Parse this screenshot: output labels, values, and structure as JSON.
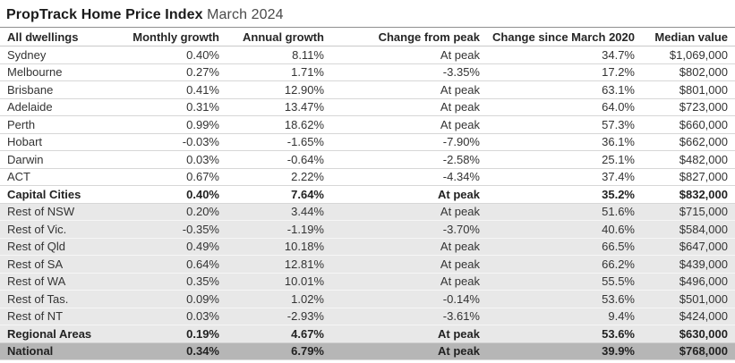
{
  "title": {
    "bold": "PropTrack Home Price Index",
    "regular": "March 2024"
  },
  "chart_data": {
    "type": "table",
    "title": "PropTrack Home Price Index March 2024",
    "columns": [
      "All dwellings",
      "Monthly growth",
      "Annual growth",
      "Change from peak",
      "Change since March 2020",
      "Median value"
    ],
    "rows": [
      {
        "group": "capital",
        "cells": [
          "Sydney",
          "0.40%",
          "8.11%",
          "At peak",
          "34.7%",
          "$1,069,000"
        ]
      },
      {
        "group": "capital",
        "cells": [
          "Melbourne",
          "0.27%",
          "1.71%",
          "-3.35%",
          "17.2%",
          "$802,000"
        ]
      },
      {
        "group": "capital",
        "cells": [
          "Brisbane",
          "0.41%",
          "12.90%",
          "At peak",
          "63.1%",
          "$801,000"
        ]
      },
      {
        "group": "capital",
        "cells": [
          "Adelaide",
          "0.31%",
          "13.47%",
          "At peak",
          "64.0%",
          "$723,000"
        ]
      },
      {
        "group": "capital",
        "cells": [
          "Perth",
          "0.99%",
          "18.62%",
          "At peak",
          "57.3%",
          "$660,000"
        ]
      },
      {
        "group": "capital",
        "cells": [
          "Hobart",
          "-0.03%",
          "-1.65%",
          "-7.90%",
          "36.1%",
          "$662,000"
        ]
      },
      {
        "group": "capital",
        "cells": [
          "Darwin",
          "0.03%",
          "-0.64%",
          "-2.58%",
          "25.1%",
          "$482,000"
        ]
      },
      {
        "group": "capital",
        "cells": [
          "ACT",
          "0.67%",
          "2.22%",
          "-4.34%",
          "37.4%",
          "$827,000"
        ]
      },
      {
        "group": "capital-total",
        "cells": [
          "Capital Cities",
          "0.40%",
          "7.64%",
          "At peak",
          "35.2%",
          "$832,000"
        ]
      },
      {
        "group": "regional",
        "cells": [
          "Rest of NSW",
          "0.20%",
          "3.44%",
          "At peak",
          "51.6%",
          "$715,000"
        ]
      },
      {
        "group": "regional",
        "cells": [
          "Rest of Vic.",
          "-0.35%",
          "-1.19%",
          "-3.70%",
          "40.6%",
          "$584,000"
        ]
      },
      {
        "group": "regional",
        "cells": [
          "Rest of Qld",
          "0.49%",
          "10.18%",
          "At peak",
          "66.5%",
          "$647,000"
        ]
      },
      {
        "group": "regional",
        "cells": [
          "Rest of SA",
          "0.64%",
          "12.81%",
          "At peak",
          "66.2%",
          "$439,000"
        ]
      },
      {
        "group": "regional",
        "cells": [
          "Rest of WA",
          "0.35%",
          "10.01%",
          "At peak",
          "55.5%",
          "$496,000"
        ]
      },
      {
        "group": "regional",
        "cells": [
          "Rest of Tas.",
          "0.09%",
          "1.02%",
          "-0.14%",
          "53.6%",
          "$501,000"
        ]
      },
      {
        "group": "regional",
        "cells": [
          "Rest of NT",
          "0.03%",
          "-2.93%",
          "-3.61%",
          "9.4%",
          "$424,000"
        ]
      },
      {
        "group": "regional-total",
        "cells": [
          "Regional Areas",
          "0.19%",
          "4.67%",
          "At peak",
          "53.6%",
          "$630,000"
        ]
      },
      {
        "group": "national",
        "cells": [
          "National",
          "0.34%",
          "6.79%",
          "At peak",
          "39.9%",
          "$768,000"
        ]
      }
    ],
    "column_keys": [
      "region",
      "monthly-growth",
      "annual-growth",
      "change-from-peak",
      "change-since-march-2020",
      "median-value"
    ]
  },
  "colors": {
    "regional_band": "#e8e8e8",
    "national_band": "#b6b6b6",
    "text": "#333333"
  }
}
